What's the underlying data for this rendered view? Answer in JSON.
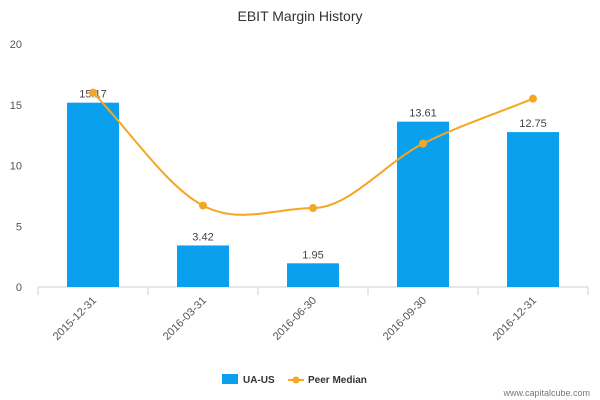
{
  "chart_data": {
    "type": "bar",
    "title": "EBIT Margin History",
    "categories": [
      "2015-12-31",
      "2016-03-31",
      "2016-06-30",
      "2016-09-30",
      "2016-12-31"
    ],
    "series": [
      {
        "name": "UA-US",
        "kind": "bar",
        "color": "#0aa0ee",
        "values": [
          15.17,
          3.42,
          1.95,
          13.61,
          12.75
        ],
        "labels": [
          "15.17",
          "3.42",
          "1.95",
          "13.61",
          "12.75"
        ]
      },
      {
        "name": "Peer Median",
        "kind": "line",
        "color": "#f5a623",
        "values": [
          16.0,
          6.7,
          6.5,
          11.8,
          15.5
        ]
      }
    ],
    "yticks": [
      "0",
      "5",
      "10",
      "15",
      "20"
    ],
    "ylim": [
      0,
      20
    ],
    "xlabel": "",
    "ylabel": "",
    "legend_position": "bottom-center",
    "grid": false
  },
  "footer": {
    "source": "www.capitalcube.com"
  }
}
